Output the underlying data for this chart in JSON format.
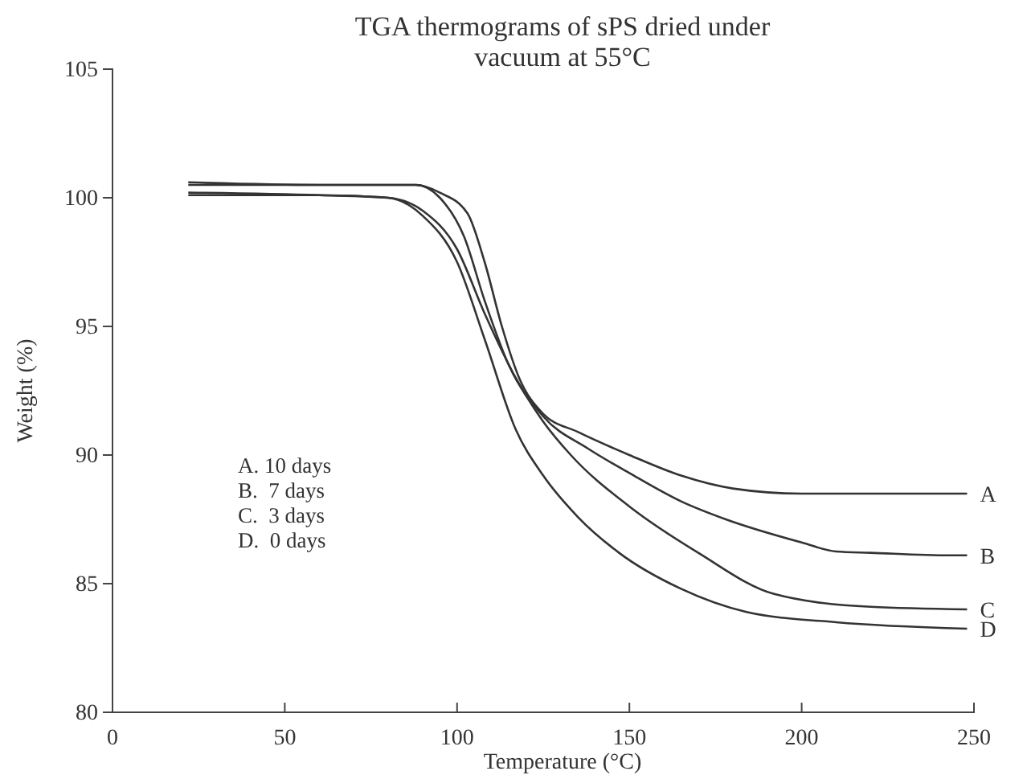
{
  "chart_data": {
    "type": "line",
    "title": "TGA thermograms of sPS dried under\nvacuum at 55°C",
    "xlabel": "Temperature (°C)",
    "ylabel": "Weight (%)",
    "xlim": [
      0,
      250
    ],
    "xticks": [
      0,
      50,
      100,
      150,
      200,
      250
    ],
    "ylim": [
      80,
      105
    ],
    "yticks": [
      80,
      85,
      90,
      95,
      100,
      105
    ],
    "grid": false,
    "annotations": [
      "A. 10 days",
      "B.  7 days",
      "C.  3 days",
      "D.  0 days"
    ],
    "series": [
      {
        "name": "A",
        "color": "#333333",
        "x": [
          22,
          60,
          88,
          95,
          103,
          108,
          113,
          118,
          125,
          135,
          150,
          165,
          180,
          200,
          248
        ],
        "values": [
          100.5,
          100.5,
          100.5,
          100.2,
          99.4,
          97.5,
          95,
          93,
          91.6,
          90.9,
          90,
          89.2,
          88.7,
          88.5,
          88.5
        ]
      },
      {
        "name": "B",
        "color": "#333333",
        "x": [
          22,
          60,
          88,
          95,
          102,
          108,
          115,
          125,
          138,
          150,
          165,
          178,
          200,
          210,
          220,
          243,
          248
        ],
        "values": [
          100.6,
          100.5,
          100.5,
          100,
          98.5,
          96,
          93.5,
          91.5,
          90.25,
          89.3,
          88.2,
          87.5,
          86.6,
          86.25,
          86.2,
          86.1,
          86.1
        ]
      },
      {
        "name": "C",
        "color": "#333333",
        "x": [
          22,
          60,
          80,
          90,
          100,
          108,
          117,
          125,
          133,
          150,
          170,
          192,
          220,
          248
        ],
        "values": [
          100.1,
          100.1,
          100,
          99.5,
          98,
          95.5,
          93,
          91.3,
          90,
          88,
          86.2,
          84.6,
          84.1,
          84
        ]
      },
      {
        "name": "D",
        "color": "#333333",
        "x": [
          22,
          60,
          80,
          90,
          100,
          108,
          117,
          125,
          135,
          147,
          165,
          184,
          210,
          248
        ],
        "values": [
          100.2,
          100.1,
          100,
          99.3,
          97.5,
          94.5,
          91,
          89.2,
          87.6,
          86.2,
          84.8,
          83.9,
          83.5,
          83.25
        ]
      }
    ]
  }
}
